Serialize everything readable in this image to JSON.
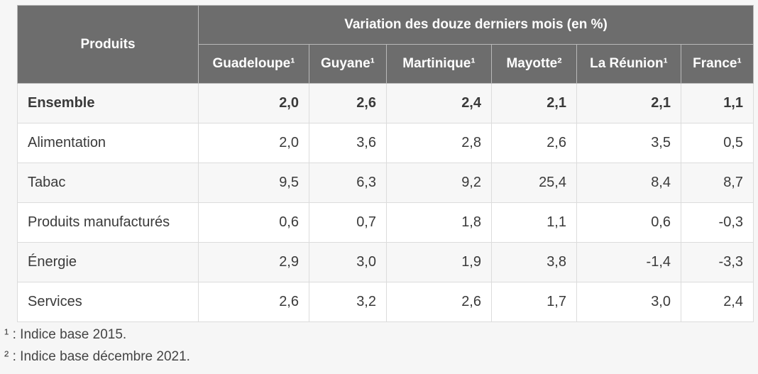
{
  "table": {
    "produits_header": "Produits",
    "group_header": "Variation des douze derniers mois (en %)",
    "columns": [
      "Guadeloupe¹",
      "Guyane¹",
      "Martinique¹",
      "Mayotte²",
      "La Réunion¹",
      "France¹"
    ],
    "rows": [
      {
        "label": "Ensemble",
        "values": [
          "2,0",
          "2,6",
          "2,4",
          "2,1",
          "2,1",
          "1,1"
        ],
        "bold": true
      },
      {
        "label": "Alimentation",
        "values": [
          "2,0",
          "3,6",
          "2,8",
          "2,6",
          "3,5",
          "0,5"
        ]
      },
      {
        "label": "Tabac",
        "values": [
          "9,5",
          "6,3",
          "9,2",
          "25,4",
          "8,4",
          "8,7"
        ]
      },
      {
        "label": "Produits manufacturés",
        "values": [
          "0,6",
          "0,7",
          "1,8",
          "1,1",
          "0,6",
          "-0,3"
        ]
      },
      {
        "label": "Énergie",
        "values": [
          "2,9",
          "3,0",
          "1,9",
          "3,8",
          "-1,4",
          "-3,3"
        ]
      },
      {
        "label": "Services",
        "values": [
          "2,6",
          "3,2",
          "2,6",
          "1,7",
          "3,0",
          "2,4"
        ]
      }
    ]
  },
  "notes": [
    "¹ : Indice base 2015.",
    "² : Indice base décembre 2021."
  ],
  "colors": {
    "header_bg": "#6d6d6d",
    "header_text": "#ffffff",
    "row_alt_bg": "#f7f7f7",
    "row_bg": "#ffffff",
    "border": "#dcdcdc"
  }
}
